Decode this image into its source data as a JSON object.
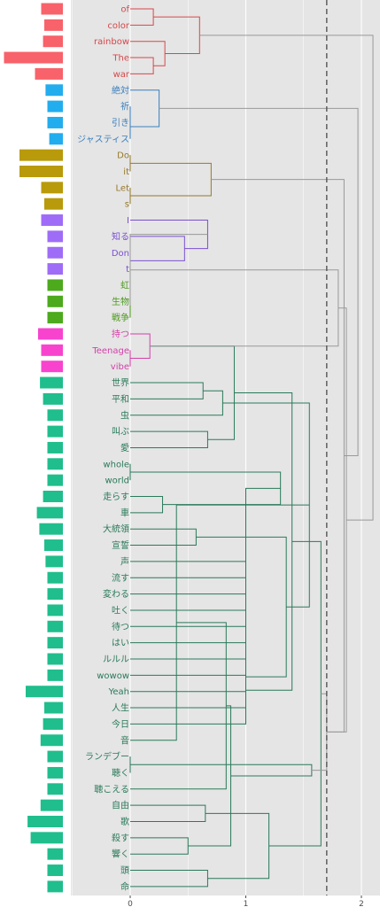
{
  "chart_data": {
    "type": "dendrogram",
    "x_ticks": [
      0,
      1,
      2
    ],
    "xlim": [
      -0.55,
      2.15
    ],
    "cut_height": 1.7,
    "colors": {
      "red": "#d7474a",
      "blue": "#3a7fbd",
      "olive": "#96782a",
      "purple": "#7b4fd1",
      "green": "#4d9a1e",
      "magenta": "#d43fa8",
      "teal": "#2a7a5a",
      "gray": "#999999"
    },
    "bar_colors": {
      "red": "#f8626a",
      "blue": "#22adee",
      "olive": "#b89a0a",
      "purple": "#9f6cf8",
      "green": "#4caa1c",
      "magenta": "#f843cf",
      "teal": "#1fbe8c"
    },
    "words": [
      {
        "label": "of",
        "group": "red",
        "freq": 0.35
      },
      {
        "label": "color",
        "group": "red",
        "freq": 0.3
      },
      {
        "label": "rainbow",
        "group": "red",
        "freq": 0.32
      },
      {
        "label": "The",
        "group": "red",
        "freq": 0.95
      },
      {
        "label": "war",
        "group": "red",
        "freq": 0.45
      },
      {
        "label": "絶対",
        "group": "blue",
        "freq": 0.28
      },
      {
        "label": "祈",
        "group": "blue",
        "freq": 0.25
      },
      {
        "label": "引き",
        "group": "blue",
        "freq": 0.25
      },
      {
        "label": "ジャスティス",
        "group": "blue",
        "freq": 0.22
      },
      {
        "label": "Do",
        "group": "olive",
        "freq": 0.7
      },
      {
        "label": "it",
        "group": "olive",
        "freq": 0.7
      },
      {
        "label": "Let",
        "group": "olive",
        "freq": 0.35
      },
      {
        "label": "s",
        "group": "olive",
        "freq": 0.3
      },
      {
        "label": "I",
        "group": "purple",
        "freq": 0.35
      },
      {
        "label": "知る",
        "group": "purple",
        "freq": 0.25
      },
      {
        "label": "Don",
        "group": "purple",
        "freq": 0.25
      },
      {
        "label": "t",
        "group": "purple",
        "freq": 0.25
      },
      {
        "label": "虹",
        "group": "green",
        "freq": 0.25
      },
      {
        "label": "生物",
        "group": "green",
        "freq": 0.25
      },
      {
        "label": "戦争",
        "group": "green",
        "freq": 0.25
      },
      {
        "label": "持つ",
        "group": "magenta",
        "freq": 0.4
      },
      {
        "label": "Teenage",
        "group": "magenta",
        "freq": 0.35
      },
      {
        "label": "vibe",
        "group": "magenta",
        "freq": 0.35
      },
      {
        "label": "世界",
        "group": "teal",
        "freq": 0.37
      },
      {
        "label": "平和",
        "group": "teal",
        "freq": 0.32
      },
      {
        "label": "虫",
        "group": "teal",
        "freq": 0.25
      },
      {
        "label": "叫ぶ",
        "group": "teal",
        "freq": 0.25
      },
      {
        "label": "愛",
        "group": "teal",
        "freq": 0.25
      },
      {
        "label": "whole",
        "group": "teal",
        "freq": 0.25
      },
      {
        "label": "world",
        "group": "teal",
        "freq": 0.25
      },
      {
        "label": "走らす",
        "group": "teal",
        "freq": 0.32
      },
      {
        "label": "車",
        "group": "teal",
        "freq": 0.42
      },
      {
        "label": "大統領",
        "group": "teal",
        "freq": 0.38
      },
      {
        "label": "宣誓",
        "group": "teal",
        "freq": 0.3
      },
      {
        "label": "声",
        "group": "teal",
        "freq": 0.28
      },
      {
        "label": "流す",
        "group": "teal",
        "freq": 0.25
      },
      {
        "label": "変わる",
        "group": "teal",
        "freq": 0.25
      },
      {
        "label": "吐く",
        "group": "teal",
        "freq": 0.25
      },
      {
        "label": "待つ",
        "group": "teal",
        "freq": 0.25
      },
      {
        "label": "はい",
        "group": "teal",
        "freq": 0.25
      },
      {
        "label": "ルルル",
        "group": "teal",
        "freq": 0.25
      },
      {
        "label": "wowow",
        "group": "teal",
        "freq": 0.25
      },
      {
        "label": "Yeah",
        "group": "teal",
        "freq": 0.6
      },
      {
        "label": "人生",
        "group": "teal",
        "freq": 0.3
      },
      {
        "label": "今日",
        "group": "teal",
        "freq": 0.32
      },
      {
        "label": "音",
        "group": "teal",
        "freq": 0.36
      },
      {
        "label": "ランデブー",
        "group": "teal",
        "freq": 0.25
      },
      {
        "label": "聴く",
        "group": "teal",
        "freq": 0.25
      },
      {
        "label": "聴こえる",
        "group": "teal",
        "freq": 0.25
      },
      {
        "label": "自由",
        "group": "teal",
        "freq": 0.36
      },
      {
        "label": "歌",
        "group": "teal",
        "freq": 0.57
      },
      {
        "label": "殺す",
        "group": "teal",
        "freq": 0.52
      },
      {
        "label": "響く",
        "group": "teal",
        "freq": 0.25
      },
      {
        "label": "頭",
        "group": "teal",
        "freq": 0.25
      },
      {
        "label": "命",
        "group": "teal",
        "freq": 0.25
      }
    ],
    "merges": [
      {
        "a": 0,
        "b": 1,
        "h": 0.2,
        "c": "red"
      },
      {
        "a": 3,
        "b": 4,
        "h": 0.2,
        "c": "red"
      },
      {
        "a": 2,
        "b": 56,
        "h": 0.3,
        "c": "red"
      },
      {
        "a": 55,
        "b": 57,
        "h": 0.6,
        "c": "red"
      },
      {
        "a": 6,
        "b": 7,
        "h": 0.0,
        "c": "blue"
      },
      {
        "a": 8,
        "b": 59,
        "h": 0.0,
        "c": "blue"
      },
      {
        "a": 5,
        "b": 60,
        "h": 0.25,
        "c": "blue"
      },
      {
        "a": 9,
        "b": 10,
        "h": 0.0,
        "c": "olive"
      },
      {
        "a": 11,
        "b": 12,
        "h": 0.0,
        "c": "olive"
      },
      {
        "a": 62,
        "b": 63,
        "h": 0.7,
        "c": "olive"
      },
      {
        "a": 15,
        "b": 16,
        "h": 0.0,
        "c": "purple"
      },
      {
        "a": 14,
        "b": 65,
        "h": 0.47,
        "c": "purple"
      },
      {
        "a": 13,
        "b": 66,
        "h": 0.67,
        "c": "purple"
      },
      {
        "a": 17,
        "b": 18,
        "h": 0.0,
        "c": "green"
      },
      {
        "a": 19,
        "b": 68,
        "h": 0.0,
        "c": "green"
      },
      {
        "a": 21,
        "b": 22,
        "h": 0.0,
        "c": "magenta"
      },
      {
        "a": 20,
        "b": 70,
        "h": 0.17,
        "c": "magenta"
      },
      {
        "a": 23,
        "b": 24,
        "h": 0.63,
        "c": "teal"
      },
      {
        "a": 26,
        "b": 27,
        "h": 0.67,
        "c": "teal"
      },
      {
        "a": 25,
        "b": 72,
        "h": 0.8,
        "c": "teal"
      },
      {
        "a": 71,
        "b": 73,
        "h": 0.9,
        "c": "teal"
      },
      {
        "a": 28,
        "b": 29,
        "h": 0.0,
        "c": "teal"
      },
      {
        "a": 30,
        "b": 31,
        "h": 0.28,
        "c": "teal"
      },
      {
        "a": 32,
        "b": 33,
        "h": 0.57,
        "c": "teal"
      },
      {
        "a": 76,
        "b": 77,
        "h": 1.3,
        "c": "teal"
      },
      {
        "a": 34,
        "b": 35,
        "h": 1.0,
        "c": "teal"
      },
      {
        "a": 36,
        "b": 79,
        "h": 1.0,
        "c": "teal"
      },
      {
        "a": 37,
        "b": 80,
        "h": 1.0,
        "c": "teal"
      },
      {
        "a": 38,
        "b": 81,
        "h": 1.0,
        "c": "teal"
      },
      {
        "a": 39,
        "b": 82,
        "h": 1.0,
        "c": "teal"
      },
      {
        "a": 40,
        "b": 83,
        "h": 1.0,
        "c": "teal"
      },
      {
        "a": 41,
        "b": 84,
        "h": 1.0,
        "c": "teal"
      },
      {
        "a": 42,
        "b": 85,
        "h": 1.0,
        "c": "teal"
      },
      {
        "a": 43,
        "b": 86,
        "h": 1.0,
        "c": "teal"
      },
      {
        "a": 44,
        "b": 87,
        "h": 1.0,
        "c": "teal"
      },
      {
        "a": 78,
        "b": 88,
        "h": 1.35,
        "c": "teal"
      },
      {
        "a": 75,
        "b": 89,
        "h": 1.4,
        "c": "teal"
      },
      {
        "a": 74,
        "b": 90,
        "h": 1.55,
        "c": "teal"
      },
      {
        "a": 46,
        "b": 47,
        "h": 0.0,
        "c": "teal"
      },
      {
        "a": 45,
        "b": 92,
        "h": 0.4,
        "c": "teal"
      },
      {
        "a": 49,
        "b": 50,
        "h": 0.65,
        "c": "teal"
      },
      {
        "a": 48,
        "b": 94,
        "h": 0.83,
        "c": "teal"
      },
      {
        "a": 51,
        "b": 52,
        "h": 0.5,
        "c": "teal"
      },
      {
        "a": 53,
        "b": 54,
        "h": 0.67,
        "c": "teal"
      },
      {
        "a": 96,
        "b": 97,
        "h": 0.87,
        "c": "teal"
      },
      {
        "a": 95,
        "b": 98,
        "h": 1.2,
        "c": "teal"
      },
      {
        "a": 93,
        "b": 99,
        "h": 1.57,
        "c": "teal"
      },
      {
        "a": 91,
        "b": 100,
        "h": 1.65,
        "c": "teal"
      },
      {
        "a": 67,
        "b": 69,
        "h": 0.0,
        "c": "gray"
      },
      {
        "a": 102,
        "b": 101,
        "h": 1.7,
        "c": "gray"
      },
      {
        "a": 103,
        "b": 71,
        "h": 1.8,
        "c": "gray"
      },
      {
        "a": 64,
        "b": 104,
        "h": 1.85,
        "c": "gray"
      },
      {
        "a": 105,
        "b": 104,
        "h": 1.87,
        "c": "gray"
      },
      {
        "a": 106,
        "b": 61,
        "h": 1.97,
        "c": "gray"
      },
      {
        "a": 58,
        "b": 107,
        "h": 2.1,
        "c": "gray"
      }
    ]
  }
}
